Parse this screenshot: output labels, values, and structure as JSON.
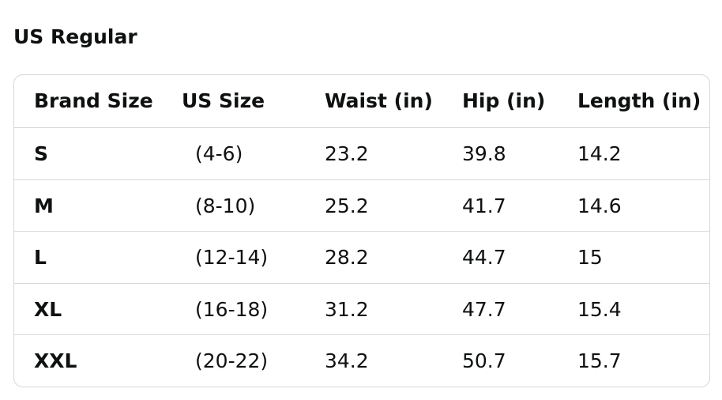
{
  "header": {
    "title": "US Regular"
  },
  "table": {
    "columns": [
      "Brand Size",
      "US Size",
      "Waist (in)",
      "Hip (in)",
      "Length (in)"
    ],
    "rows": [
      [
        "S",
        "(4-6)",
        "23.2",
        "39.8",
        "14.2"
      ],
      [
        "M",
        "(8-10)",
        "25.2",
        "41.7",
        "14.6"
      ],
      [
        "L",
        "(12-14)",
        "28.2",
        "44.7",
        "15"
      ],
      [
        "XL",
        "(16-18)",
        "31.2",
        "47.7",
        "15.4"
      ],
      [
        "XXL",
        "(20-22)",
        "34.2",
        "50.7",
        "15.7"
      ]
    ]
  }
}
